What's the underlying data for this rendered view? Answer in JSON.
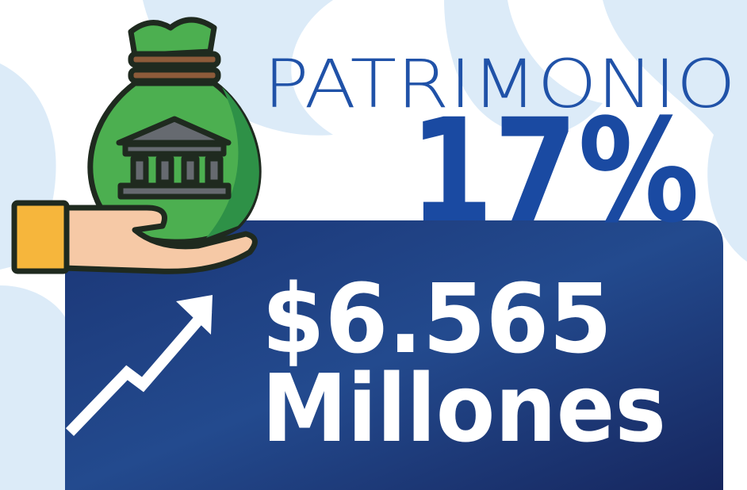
{
  "header": {
    "title": "PATRIMONIO",
    "percent": "17%"
  },
  "card": {
    "amount": "$6.565",
    "unit": "Millones"
  }
}
